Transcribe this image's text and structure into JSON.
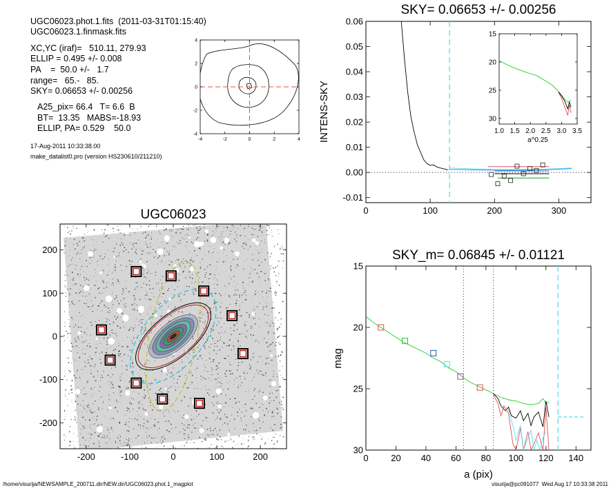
{
  "header": {
    "line1": "UGC06023.phot.1.fits  (2011-03-31T01:15:40)",
    "line2": "UGC06023.1.finmask.fits",
    "stats": [
      "XC,YC (iraf)=   510.11, 279.93",
      "ELLIP = 0.495 +/- 0.008",
      "PA    =  50.0 +/-   1.7",
      "range=   65.-   85.",
      "SKY= 0.06653 +/- 0.00256"
    ],
    "params": [
      "A25_pix= 66.4   T= 6.6  B",
      "BT=  13.35   MABS=-18.93",
      "ELLIP, PA= 0.529    50.0"
    ],
    "date": "17-Aug-2011 10:33:38.00",
    "program": "make_datalist0.pro (version HS230610/211210)"
  },
  "footer": {
    "left": "/home/visurija/NEWSAMPLE_200711.dir/NEW.dir/UGC06023.phot.1_magplot",
    "right": "visurija@pc091077  Wed Aug 17 10:33:38 2011"
  },
  "chart_data": [
    {
      "id": "small-contour",
      "type": "contour",
      "title": "",
      "xlabel": "",
      "ylabel": "",
      "xlim": [
        -4,
        4
      ],
      "ylim": [
        -4,
        4
      ],
      "xticks": [
        "-4",
        "-2",
        "0",
        "2",
        "4"
      ],
      "yticks": [
        "-4",
        "-2",
        "0",
        "2",
        "4"
      ],
      "crosshair": [
        0,
        0
      ],
      "colors": {
        "crosshair": "#e05050",
        "contour": "#000000"
      }
    },
    {
      "id": "sky-profile",
      "type": "line",
      "title": "SKY= 0.06653 +/- 0.00256",
      "xlabel": "",
      "ylabel": "INTENS-SKY",
      "xlim": [
        0,
        350
      ],
      "ylim": [
        -0.012,
        0.06
      ],
      "xticks": [
        "0",
        "100",
        "200",
        "300"
      ],
      "yticks": [
        "-0.01",
        "0.00",
        "0.01",
        "0.02",
        "0.03",
        "0.04",
        "0.05",
        "0.06"
      ],
      "vline": 130,
      "series": [
        {
          "color": "#000000",
          "x": [
            55,
            60,
            65,
            70,
            75,
            80,
            85,
            90,
            95,
            100,
            105,
            110,
            115,
            120,
            125,
            128
          ],
          "y": [
            0.06,
            0.045,
            0.032,
            0.022,
            0.016,
            0.011,
            0.008,
            0.005,
            0.0035,
            0.0028,
            0.003,
            0.0022,
            0.0018,
            0.0015,
            0.0012,
            0.001
          ]
        },
        {
          "color": "#55e0f0",
          "x": [
            130,
            145,
            160,
            175,
            190,
            200,
            220,
            240,
            260,
            280,
            300,
            320
          ],
          "y": [
            0.0018,
            0.0016,
            0.0015,
            0.0014,
            0.0013,
            0.0012,
            0.0011,
            0.0011,
            0.0012,
            0.0013,
            0.0015,
            0.0018
          ]
        },
        {
          "color": "#2080e0",
          "x": [
            130,
            150,
            170,
            200,
            230,
            260,
            290,
            320
          ],
          "y": [
            0.0012,
            0.0011,
            0.001,
            0.0009,
            0.0009,
            0.001,
            0.0012,
            0.0015
          ]
        }
      ],
      "segments": [
        {
          "color": "#e05050",
          "x": [
            190,
            285
          ],
          "y": 0.0023
        },
        {
          "color": "#20a020",
          "x": [
            205,
            285
          ],
          "y": -0.0022
        },
        {
          "color": "#2080e0",
          "x": [
            200,
            285
          ],
          "y": 0.0006
        },
        {
          "color": "#000000",
          "x": [
            200,
            285
          ],
          "y": -0.0005
        }
      ],
      "squares": [
        [
          195,
          -0.0008
        ],
        [
          205,
          -0.0045
        ],
        [
          215,
          -0.0015
        ],
        [
          225,
          -0.0032
        ],
        [
          235,
          0.0025
        ],
        [
          245,
          -0.0005
        ],
        [
          255,
          0.0015
        ],
        [
          265,
          0.0008
        ],
        [
          275,
          0.003
        ]
      ]
    },
    {
      "id": "inset-mag",
      "type": "line",
      "title": "",
      "xlabel": "a^0.25",
      "ylabel": "",
      "xlim": [
        1.0,
        3.5
      ],
      "ylim": [
        31,
        15
      ],
      "xticks": [
        "1.0",
        "1.5",
        "2.0",
        "2.5",
        "3.0",
        "3.5"
      ],
      "yticks": [
        "15",
        "20",
        "25",
        "30"
      ],
      "series": [
        {
          "color": "#22cc22",
          "x": [
            1.0,
            1.3,
            1.6,
            1.9,
            2.2,
            2.5,
            2.7,
            2.9,
            3.0,
            3.1,
            3.2,
            3.3
          ],
          "y": [
            19.8,
            20.6,
            21.3,
            21.9,
            22.4,
            23.4,
            24.1,
            25.2,
            25.9,
            26.6,
            27.1,
            26.8
          ]
        },
        {
          "color": "#000000",
          "x": [
            2.9,
            3.0,
            3.1,
            3.2,
            3.25,
            3.3
          ],
          "y": [
            25.3,
            26.0,
            26.9,
            28.3,
            27.1,
            28.0
          ]
        },
        {
          "color": "#e05050",
          "x": [
            2.9,
            3.0,
            3.1,
            3.2,
            3.25,
            3.3
          ],
          "y": [
            25.4,
            26.4,
            28.0,
            29.4,
            27.6,
            29.0
          ]
        }
      ]
    },
    {
      "id": "galaxy-image",
      "type": "image",
      "title": "UGC06023",
      "xlabel": "",
      "ylabel": "",
      "xlim": [
        -260,
        260
      ],
      "ylim": [
        -260,
        260
      ],
      "xticks": [
        "-200",
        "-100",
        "0",
        "100",
        "200"
      ],
      "yticks": [
        "-200",
        "-100",
        "0",
        "100",
        "200"
      ],
      "sky_boxes": [
        [
          -85,
          150
        ],
        [
          -5,
          140
        ],
        [
          70,
          105
        ],
        [
          135,
          48
        ],
        [
          160,
          -40
        ],
        [
          60,
          -155
        ],
        [
          -25,
          -145
        ],
        [
          -85,
          -108
        ],
        [
          -145,
          -55
        ],
        [
          -165,
          15
        ]
      ],
      "ellipses": [
        {
          "name": "outer-dashed",
          "a": 130,
          "b": 68,
          "pa": 50,
          "color": "#30c0e0",
          "dash": true
        },
        {
          "name": "outer-dotted",
          "a": 175,
          "b": 55,
          "pa": 80,
          "color": "#c0c040",
          "dash": true
        },
        {
          "name": "isophote-red",
          "a": 98,
          "b": 46,
          "pa": 40,
          "color": "#b02020",
          "dash": false
        },
        {
          "name": "isophote-black",
          "a": 105,
          "b": 49,
          "pa": 40,
          "color": "#000000",
          "dash": false
        }
      ]
    },
    {
      "id": "mag-profile",
      "type": "line",
      "title": "SKY_m=  0.06845 +/- 0.01121",
      "xlabel": "a (pix)",
      "ylabel": "mag",
      "xlim": [
        0,
        150
      ],
      "ylim": [
        30,
        15
      ],
      "xticks": [
        "0",
        "20",
        "40",
        "60",
        "80",
        "100",
        "120",
        "140"
      ],
      "yticks": [
        "15",
        "20",
        "25",
        "30"
      ],
      "vlines_dotted": [
        65,
        85
      ],
      "vline_dashed": 128,
      "hline_dashed": {
        "y": 27.3,
        "x": [
          128,
          145
        ]
      },
      "series": [
        {
          "color": "#22cc22",
          "x": [
            0,
            5,
            10,
            15,
            20,
            25,
            30,
            35,
            40,
            45,
            50,
            55,
            60,
            65,
            70,
            75,
            80,
            85,
            90,
            95,
            100,
            105,
            110,
            115,
            118,
            120,
            122
          ],
          "y": [
            19.1,
            19.6,
            20.0,
            20.4,
            20.8,
            21.2,
            21.5,
            21.8,
            22.1,
            22.5,
            22.8,
            23.3,
            23.6,
            24.1,
            24.5,
            24.8,
            25.1,
            25.4,
            25.7,
            25.9,
            26.0,
            26.2,
            26.3,
            26.2,
            25.8,
            26.2,
            26.1
          ]
        },
        {
          "color": "#000000",
          "x": [
            85,
            88,
            90,
            93,
            95,
            97,
            100,
            103,
            105,
            108,
            110,
            112,
            115,
            118,
            120,
            122
          ],
          "y": [
            25.4,
            25.8,
            26.4,
            26.8,
            26.5,
            27.2,
            27.4,
            26.8,
            27.6,
            27.0,
            28.0,
            27.3,
            26.9,
            28.1,
            26.0,
            27.3
          ]
        },
        {
          "color": "#e05050",
          "x": [
            85,
            88,
            90,
            92,
            95,
            98,
            100,
            103,
            105,
            108,
            110,
            112,
            115,
            118,
            120,
            122
          ],
          "y": [
            25.5,
            26.2,
            27.2,
            26.4,
            27.0,
            29.5,
            30.0,
            28.2,
            30.0,
            28.5,
            30.0,
            29.5,
            28.6,
            30.0,
            26.5,
            30.0
          ]
        },
        {
          "color": "#55e0f0",
          "x": [
            95,
            98,
            100,
            103,
            105,
            108,
            110,
            112,
            114,
            116,
            118,
            120
          ],
          "y": [
            26.7,
            28.0,
            29.2,
            28.0,
            30.0,
            29.0,
            28.4,
            30.0,
            29.2,
            30.0,
            29.0,
            28.5
          ]
        }
      ],
      "markers": [
        {
          "x": 10,
          "y": 20.0,
          "color": "#e05050"
        },
        {
          "x": 26,
          "y": 21.1,
          "color": "#22cc22"
        },
        {
          "x": 45,
          "y": 22.1,
          "color": "#2050c0"
        },
        {
          "x": 54,
          "y": 23.0,
          "color": "#55e0f0"
        },
        {
          "x": 63,
          "y": 24.0,
          "color": "#b040b0"
        },
        {
          "x": 76,
          "y": 24.9,
          "color": "#e05050"
        }
      ]
    }
  ]
}
